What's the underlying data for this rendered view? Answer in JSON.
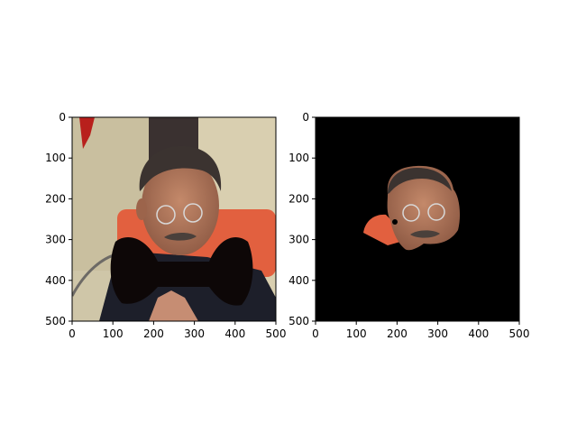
{
  "figure": {
    "background": "#ffffff"
  },
  "chart_data": [
    {
      "type": "image",
      "title": "",
      "xlabel": "",
      "ylabel": "",
      "xlim": [
        0,
        500
      ],
      "ylim": [
        500,
        0
      ],
      "xticks": [
        0,
        100,
        200,
        300,
        400,
        500
      ],
      "yticks": [
        0,
        100,
        200,
        300,
        400,
        500
      ],
      "grid": false,
      "content": {
        "subject": "photo of a man with glasses and mustache, a black bow-tie shape covering the lower half",
        "palette": {
          "wall": "#d9cfb0",
          "wall_shadow": "#b7ad8e",
          "seat": "#e2603f",
          "jacket": "#1d1f2a",
          "skin": "#b2785a",
          "hair": "#3b3330",
          "bow_tie": "#0d0707",
          "flag": "#b8201c",
          "hands": "#c68d73"
        }
      }
    },
    {
      "type": "image",
      "title": "",
      "xlabel": "",
      "ylabel": "",
      "xlim": [
        0,
        500
      ],
      "ylim": [
        500,
        0
      ],
      "xticks": [
        0,
        100,
        200,
        300,
        400,
        500
      ],
      "yticks": [
        0,
        100,
        200,
        300,
        400,
        500
      ],
      "grid": false,
      "content": {
        "subject": "segmentation result: black background with only the face and part of the red seat visible",
        "palette": {
          "background": "#000000",
          "seat": "#e2603f",
          "skin": "#b2785a",
          "hair": "#3b3330"
        }
      }
    }
  ]
}
